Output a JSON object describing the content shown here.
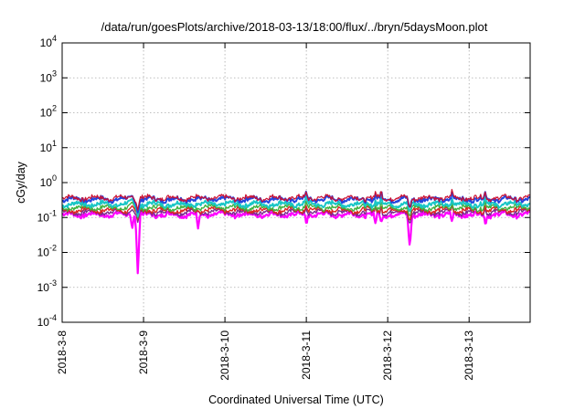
{
  "chart_data": {
    "type": "line",
    "title": "/data/run/goesPlots/archive/2018-03-13/18:00/flux/../bryn/5daysMoon.plot",
    "xlabel": "Coordinated Universal Time (UTC)",
    "ylabel": "cGy/day",
    "y_scale": "log",
    "ylim": [
      0.0001,
      10000
    ],
    "xlim": [
      "2018-03-08",
      "2018-03-13 18:00"
    ],
    "grid": true,
    "legend": "none",
    "x_ticks": [
      {
        "value": 0,
        "label": "2018-3-8"
      },
      {
        "value": 1,
        "label": "2018-3-9"
      },
      {
        "value": 2,
        "label": "2018-3-10"
      },
      {
        "value": 3,
        "label": "2018-3-11"
      },
      {
        "value": 4,
        "label": "2018-3-12"
      },
      {
        "value": 5,
        "label": "2018-3-13"
      }
    ],
    "y_ticks": [
      {
        "exp": "-4"
      },
      {
        "exp": "-3"
      },
      {
        "exp": "-2"
      },
      {
        "exp": "-1"
      },
      {
        "exp": "0"
      },
      {
        "exp": "1"
      },
      {
        "exp": "2"
      },
      {
        "exp": "3"
      },
      {
        "exp": "4"
      }
    ],
    "dips": [
      {
        "x": 0.86,
        "factor": 0.4,
        "width": 0.025
      },
      {
        "x": 0.93,
        "factor": 0.02,
        "width": 0.03
      },
      {
        "x": 1.67,
        "factor": 0.4,
        "width": 0.025
      },
      {
        "x": 3.0,
        "factor": 0.5,
        "width": 0.02
      },
      {
        "x": 3.85,
        "factor": 0.45,
        "width": 0.02
      },
      {
        "x": 3.92,
        "factor": 0.5,
        "width": 0.02
      },
      {
        "x": 4.27,
        "factor": 0.12,
        "width": 0.03
      },
      {
        "x": 4.79,
        "factor": 0.5,
        "width": 0.02
      },
      {
        "x": 5.2,
        "factor": 0.5,
        "width": 0.02
      }
    ],
    "series": [
      {
        "color": "#ff00ff",
        "base": 0.12,
        "width": 2.2
      },
      {
        "color": "#7b2c8f",
        "base": 0.14,
        "width": 1.4
      },
      {
        "color": "#dd2222",
        "base": 0.16,
        "width": 1.4
      },
      {
        "color": "#3fb23f",
        "base": 0.19,
        "width": 1.4
      },
      {
        "color": "#19c6c6",
        "base": 0.24,
        "width": 2.0
      },
      {
        "color": "#2244dd",
        "base": 0.33,
        "width": 2.0
      },
      {
        "color": "#cc1133",
        "base": 0.36,
        "width": 1.2
      }
    ]
  }
}
